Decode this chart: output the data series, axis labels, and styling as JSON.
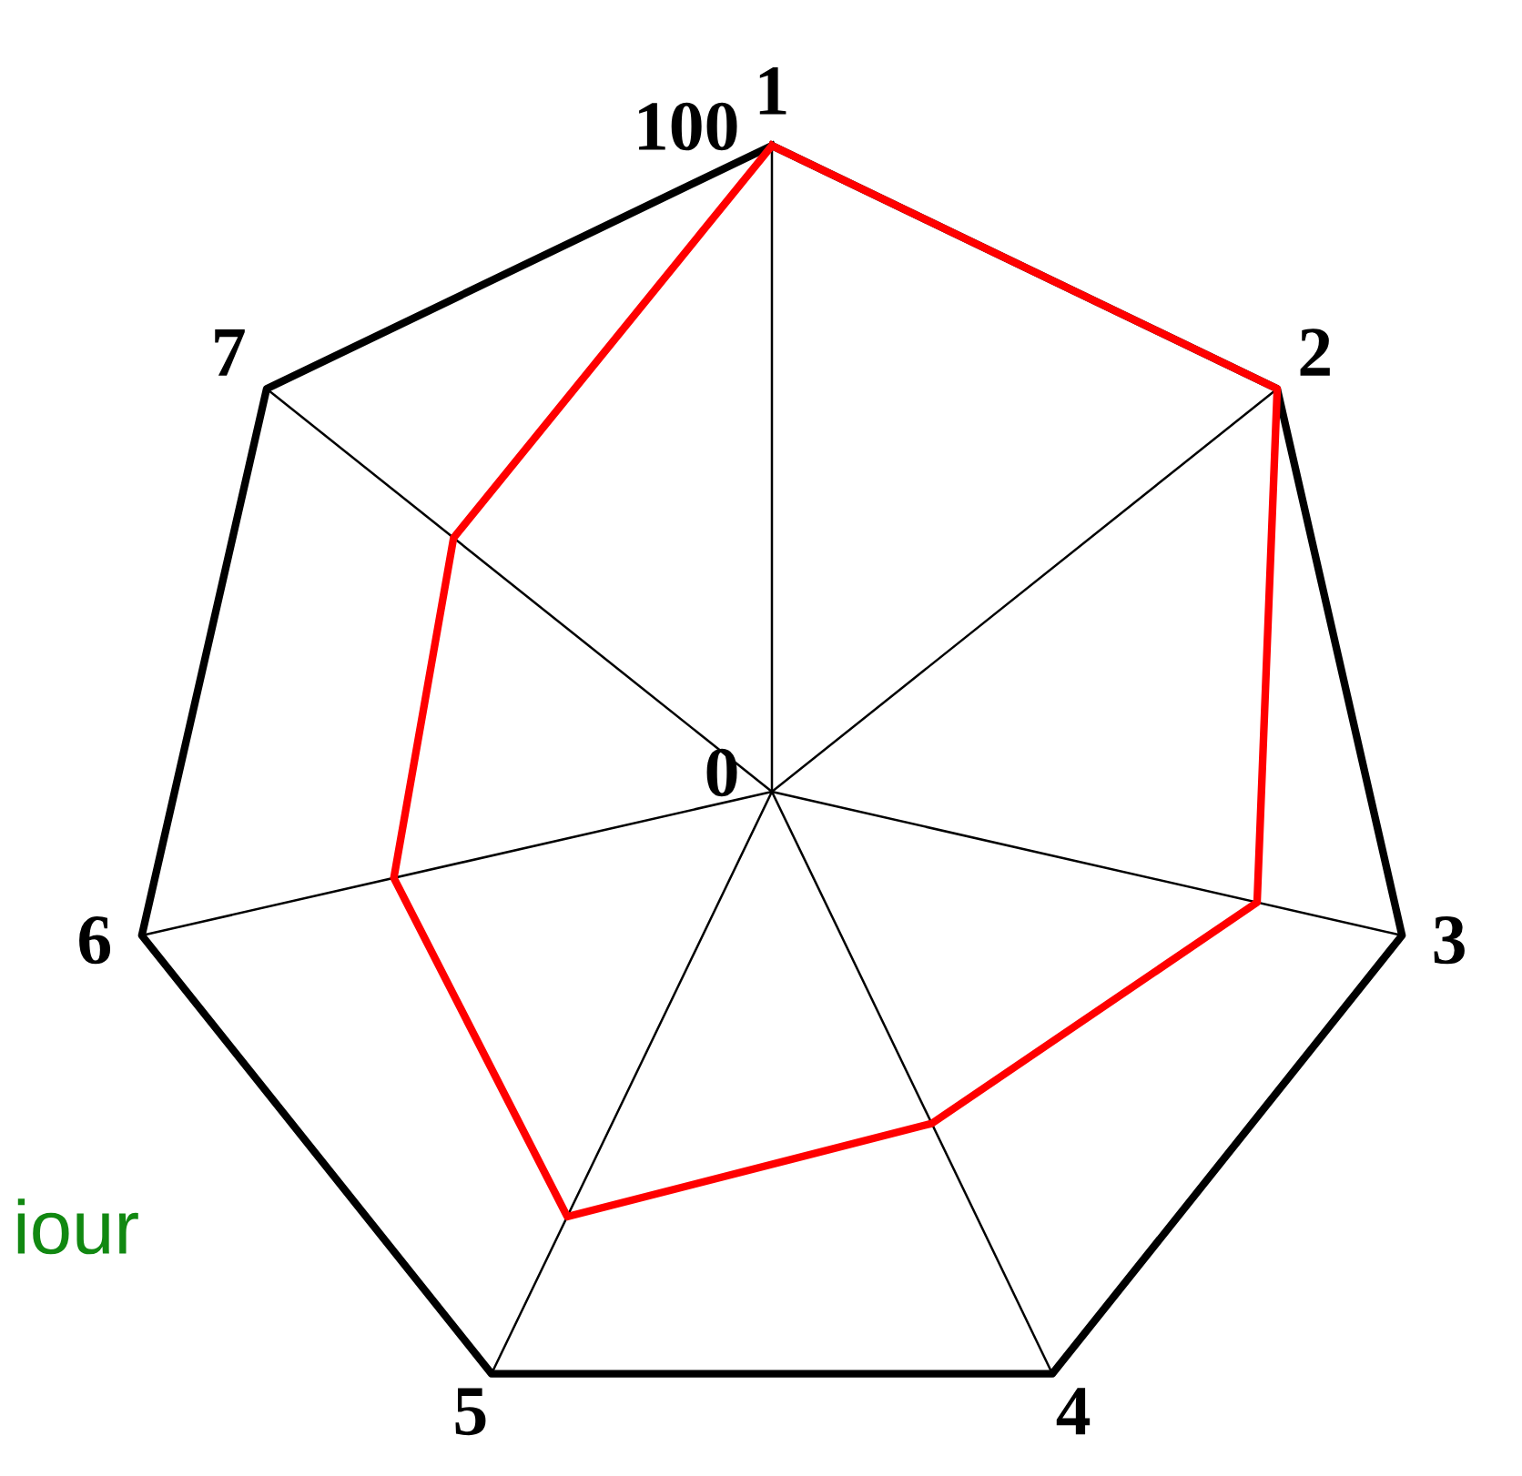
{
  "chart_data": {
    "type": "radar",
    "categories": [
      "1",
      "2",
      "3",
      "4",
      "5",
      "6",
      "7"
    ],
    "series": [
      {
        "color": "#ff0000",
        "values": [
          100,
          100,
          77,
          57,
          73,
          60,
          63
        ]
      }
    ],
    "ylim": [
      0,
      100
    ],
    "yticks": [
      0,
      100
    ],
    "grid": true,
    "annotations": [
      "iour"
    ]
  }
}
